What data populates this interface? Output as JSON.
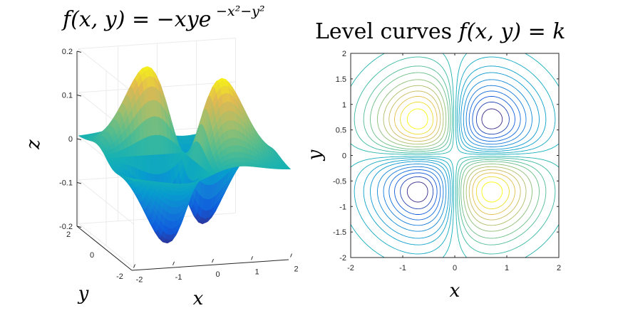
{
  "chart_data": [
    {
      "type": "surface",
      "title": "f(x,y) = −xye^{−x²−y²}",
      "title_main": "f(x, y) = −xye",
      "title_exp": "−x²−y²",
      "xlabel": "x",
      "ylabel": "y",
      "zlabel": "z",
      "xlim": [
        -2,
        2
      ],
      "ylim": [
        -2,
        2
      ],
      "zlim": [
        -0.2,
        0.2
      ],
      "xticks": [
        "-2",
        "-1",
        "0",
        "1",
        "2"
      ],
      "yticks": [
        "-2",
        "0",
        "2"
      ],
      "zticks": [
        "0.2",
        "0.1",
        "0",
        "-0.1",
        "-0.2"
      ],
      "colormap": "parula",
      "grid": true,
      "function": "z = -x*y*exp(-x^2-y^2)",
      "peaks": [
        {
          "x": -0.71,
          "y": 0.71,
          "z": 0.184
        },
        {
          "x": 0.71,
          "y": -0.71,
          "z": 0.184
        }
      ],
      "troughs": [
        {
          "x": 0.71,
          "y": 0.71,
          "z": -0.184
        },
        {
          "x": -0.71,
          "y": -0.71,
          "z": -0.184
        }
      ]
    },
    {
      "type": "contour",
      "title": "Level curves f(x,y) = k",
      "title_text": "Level curves ",
      "title_math": "f(x, y) = k",
      "xlabel": "x",
      "ylabel": "y",
      "xlim": [
        -2,
        2
      ],
      "ylim": [
        -2,
        2
      ],
      "xticks": [
        "-2",
        "-1",
        "0",
        "1",
        "2"
      ],
      "yticks": [
        "2",
        "1.5",
        "1",
        "0.5",
        "0",
        "-0.5",
        "-1",
        "-1.5",
        "-2"
      ],
      "levels": [
        -0.17,
        -0.15,
        -0.13,
        -0.11,
        -0.09,
        -0.07,
        -0.05,
        -0.035,
        -0.02,
        -0.008,
        0.008,
        0.02,
        0.035,
        0.05,
        0.07,
        0.09,
        0.11,
        0.13,
        0.15,
        0.17
      ],
      "colormap": "parula"
    }
  ]
}
